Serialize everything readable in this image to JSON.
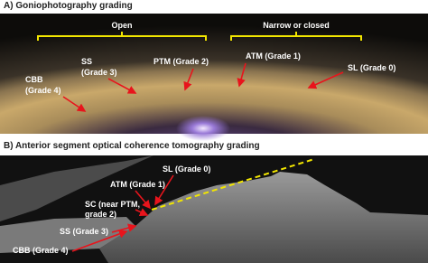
{
  "panel_a": {
    "title": "A) Goniophotography grading",
    "groups": [
      "Open",
      "Narrow or closed"
    ],
    "labels": [
      [
        "CBB",
        "(Grade 4)"
      ],
      [
        "SS",
        "(Grade 3)"
      ],
      [
        "PTM (Grade 2)"
      ],
      [
        "ATM (Grade 1)"
      ],
      [
        "SL (Grade 0)"
      ]
    ]
  },
  "panel_b": {
    "title": "B) Anterior segment optical coherence tomography grading",
    "labels": [
      [
        "SL (Grade 0)"
      ],
      [
        "ATM (Grade 1)"
      ],
      [
        "SC (near PTM,",
        "grade 2)"
      ],
      [
        "SS (Grade 3)"
      ],
      [
        "CBB (Grade 4)"
      ]
    ]
  }
}
